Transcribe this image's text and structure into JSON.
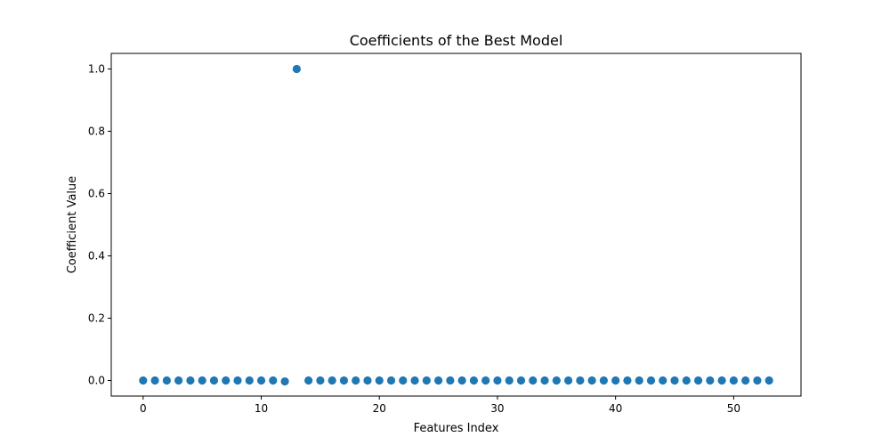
{
  "chart_data": {
    "type": "scatter",
    "title": "Coefficients of the Best Model",
    "xlabel": "Features Index",
    "ylabel": "Coefficient Value",
    "xlim": [
      -2.7,
      55.7
    ],
    "ylim": [
      -0.05,
      1.05
    ],
    "xticks": [
      0,
      10,
      20,
      30,
      40,
      50
    ],
    "yticks": [
      0.0,
      0.2,
      0.4,
      0.6,
      0.8,
      1.0
    ],
    "xtick_labels": [
      "0",
      "10",
      "20",
      "30",
      "40",
      "50"
    ],
    "ytick_labels": [
      "0.0",
      "0.2",
      "0.4",
      "0.6",
      "0.8",
      "1.0"
    ],
    "grid": false,
    "marker_color": "#1f77b4",
    "series": [
      {
        "x": [
          0,
          1,
          2,
          3,
          4,
          5,
          6,
          7,
          8,
          9,
          10,
          11,
          12,
          13,
          14,
          15,
          16,
          17,
          18,
          19,
          20,
          21,
          22,
          23,
          24,
          25,
          26,
          27,
          28,
          29,
          30,
          31,
          32,
          33,
          34,
          35,
          36,
          37,
          38,
          39,
          40,
          41,
          42,
          43,
          44,
          45,
          46,
          47,
          48,
          49,
          50,
          51,
          52,
          53
        ],
        "values": [
          0,
          0,
          0,
          0,
          0,
          0,
          0,
          0,
          0,
          0,
          0,
          0,
          -0.003,
          1.0,
          0,
          0,
          0,
          0,
          0,
          0,
          0,
          0,
          0,
          0,
          0,
          0,
          0,
          0,
          0,
          0,
          0,
          0,
          0,
          0,
          0,
          0,
          0,
          0,
          0,
          0,
          0,
          0,
          0,
          0,
          0,
          0,
          0,
          0,
          0,
          0,
          0,
          0,
          0,
          0
        ]
      }
    ]
  }
}
